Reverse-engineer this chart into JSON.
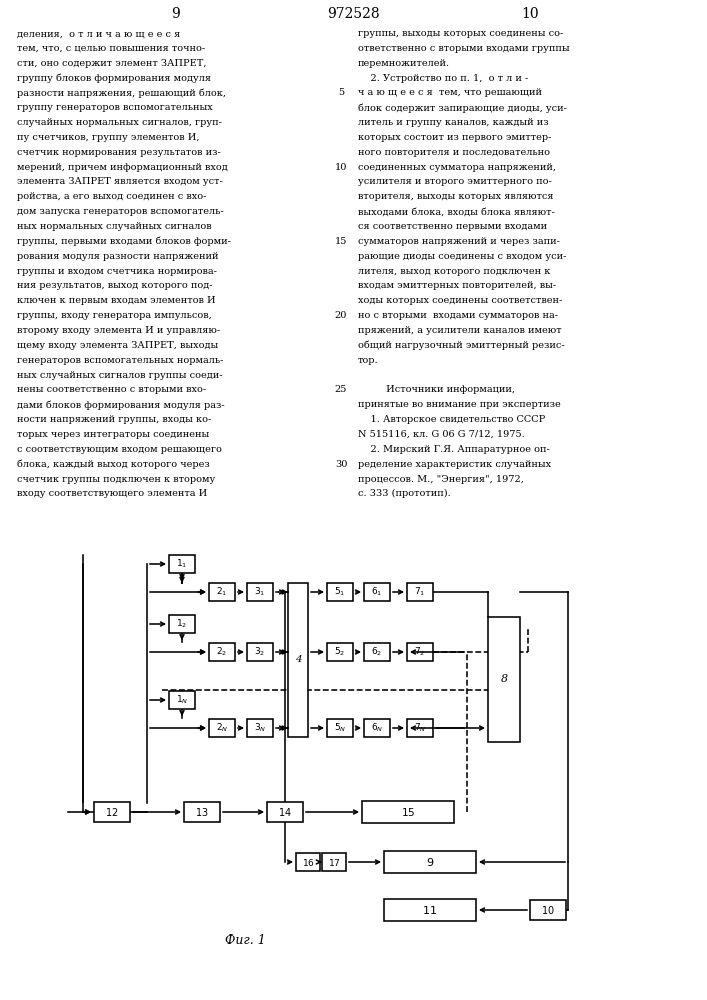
{
  "background": "#ffffff",
  "page_left": "9",
  "page_center": "972528",
  "page_right": "10",
  "left_col_text": [
    "деления,  о т л и ч а ю щ е е с я",
    "тем, что, с целью повышения точно-",
    "сти, оно содержит элемент ЗАПРЕТ,",
    "группу блоков формирования модуля",
    "разности напряжения, решающий блок,",
    "группу генераторов вспомогательных",
    "случайных нормальных сигналов, груп-",
    "пу счетчиков, группу элементов И,",
    "счетчик нормирования результатов из-",
    "мерений, причем информационный вход",
    "элемента ЗАПРЕТ является входом уст-",
    "ройства, а его выход соединен с вхо-",
    "дом запуска генераторов вспомогатель-",
    "ных нормальных случайных сигналов",
    "группы, первыми входами блоков форми-",
    "рования модуля разности напряжений",
    "группы и входом счетчика нормирова-",
    "ния результатов, выход которого под-",
    "ключен к первым входам элементов И",
    "группы, входу генератора импульсов,",
    "второму входу элемента И и управляю-",
    "щему входу элемента ЗАПРЕТ, выходы",
    "генераторов вспомогательных нормаль-",
    "ных случайных сигналов группы соеди-",
    "нены соответственно с вторыми вхо-",
    "дами блоков формирования модуля раз-",
    "ности напряжений группы, входы ко-",
    "торых через интеграторы соединены",
    "с соответствующим входом решающего",
    "блока, каждый выход которого через",
    "счетчик группы подключен к второму",
    "входу соответствующего элемента И"
  ],
  "right_col_text": [
    "группы, выходы которых соединены со-",
    "ответственно с вторыми входами группы",
    "перемножителей.",
    "    2. Устройство по п. 1,  о т л и -",
    "ч а ю щ е е с я  тем, что решающий",
    "блок содержит запирающие диоды, уси-",
    "литель и группу каналов, каждый из",
    "которых состоит из первого эмиттер-",
    "ного повторителя и последовательно",
    "соединенных сумматора напряжений,",
    "усилителя и второго эмиттерного по-",
    "вторителя, выходы которых являются",
    "выходами блока, входы блока являют-",
    "ся соответственно первыми входами",
    "сумматоров напряжений и через запи-",
    "рающие диоды соединены с входом уси-",
    "лителя, выход которого подключен к",
    "входам эмиттерных повторителей, вы-",
    "ходы которых соединены соответствен-",
    "но с вторыми  входами сумматоров на-",
    "пряжений, а усилители каналов имеют",
    "общий нагрузочный эмиттерный резис-",
    "тор.",
    "",
    "         Источники информации,",
    "принятые во внимание при экспертизе",
    "    1. Авторское свидетельство СССР",
    "N 515116, кл. G 06 G 7/12, 1975.",
    "    2. Мирский Г.Я. Аппаратурное оп-",
    "ределение характеристик случайных",
    "процессов. М., \"Энергия\", 1972,",
    "с. 333 (прототип)."
  ],
  "line_numbers": [
    "5",
    "10",
    "15",
    "20",
    "25",
    "30"
  ],
  "fig_caption": "Фиг. 1"
}
